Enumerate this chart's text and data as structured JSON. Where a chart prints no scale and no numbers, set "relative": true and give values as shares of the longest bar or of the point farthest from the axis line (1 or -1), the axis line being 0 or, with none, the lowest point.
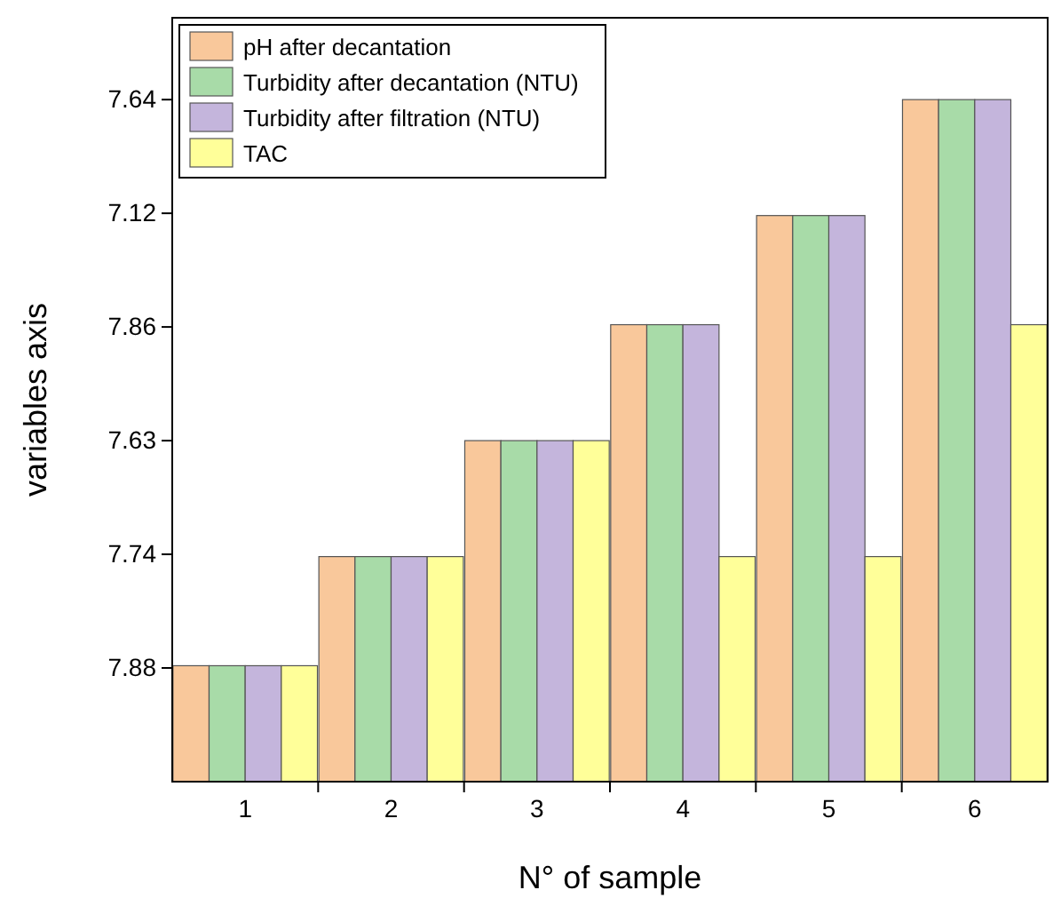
{
  "chart_data": {
    "type": "bar",
    "xlabel": "N° of sample",
    "ylabel": "variables axis",
    "categories": [
      "1",
      "2",
      "3",
      "4",
      "5",
      "6"
    ],
    "series": [
      {
        "name": "pH after decantation",
        "color": "#f9c89b",
        "values": [
          0.17,
          0.33,
          0.5,
          0.67,
          0.83,
          1
        ]
      },
      {
        "name": "Turbidity after decantation (NTU)",
        "color": "#a8dba8",
        "values": [
          0.17,
          0.33,
          0.5,
          0.67,
          0.83,
          1
        ]
      },
      {
        "name": "Turbidity after filtration (NTU)",
        "color": "#c4b5dc",
        "values": [
          0.17,
          0.33,
          0.5,
          0.67,
          0.83,
          1
        ]
      },
      {
        "name": "TAC",
        "color": "#ffff99",
        "values": [
          0.17,
          0.33,
          0.5,
          0.33,
          0.33,
          0.67
        ]
      }
    ],
    "relative": true,
    "annotations": [
      "7.88",
      "7.74",
      "7.63",
      "7.86",
      "7.12",
      "7.64"
    ],
    "legend": "top left"
  }
}
